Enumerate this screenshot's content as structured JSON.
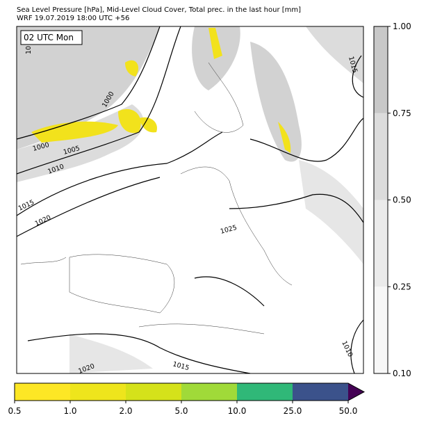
{
  "header": {
    "title": "Sea Level Pressure [hPa], Mid-Level Cloud Cover, Total prec. in the last hour [mm]",
    "subtitle": "WRF 19.07.2019 18:00 UTC +56"
  },
  "map": {
    "time_label": "02 UTC Mon",
    "isobar_labels": [
      "1000",
      "1005",
      "1010",
      "1015",
      "1020",
      "1025",
      "1010",
      "1015",
      "1020",
      "1015",
      "1000",
      "10"
    ]
  },
  "cloud_colorbar": {
    "ticks": [
      {
        "value": 0.1,
        "label": "0.10"
      },
      {
        "value": 0.25,
        "label": "0.25"
      },
      {
        "value": 0.5,
        "label": "0.50"
      },
      {
        "value": 0.75,
        "label": "0.75"
      },
      {
        "value": 1.0,
        "label": "1.00"
      }
    ],
    "colors": [
      "#f7f7f7",
      "#ebebeb",
      "#dcdcdc",
      "#c8c8c8"
    ]
  },
  "precip_colorbar": {
    "ticks": [
      0.5,
      {
        "value": 1.0,
        "label": "1.0"
      },
      {
        "value": 2.0,
        "label": "2.0"
      },
      {
        "value": 5.0,
        "label": "5.0"
      },
      {
        "value": 10.0,
        "label": "10.0"
      },
      {
        "value": 25.0,
        "label": "25.0"
      },
      {
        "value": 50.0,
        "label": "50.0"
      }
    ],
    "colors": [
      "#fde725",
      "#eee51c",
      "#d5e21a",
      "#a0da39",
      "#30b878",
      "#3b528b"
    ],
    "extend_color": "#440154"
  }
}
